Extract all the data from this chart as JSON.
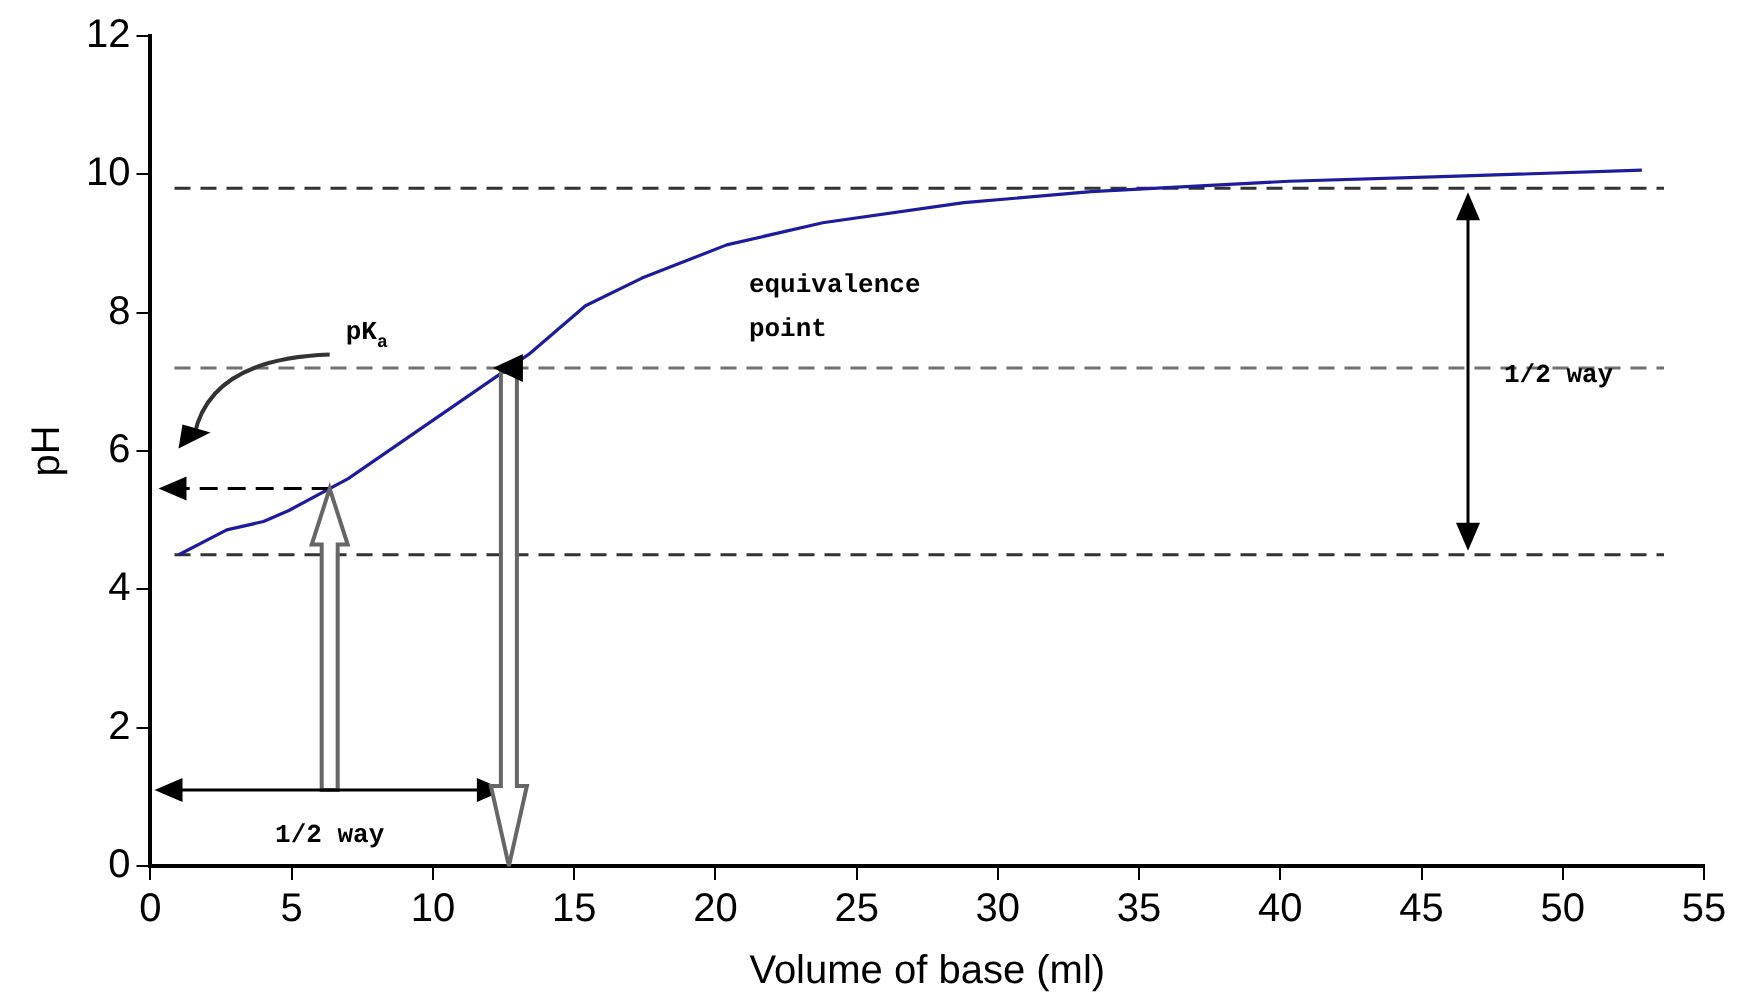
{
  "chart_data": {
    "type": "line",
    "xlabel": "Volume of base (ml)",
    "ylabel": "pH",
    "x": [
      1,
      2.7,
      4,
      4.9,
      7,
      10.2,
      13.4,
      15.4,
      17.4,
      20.4,
      23.8,
      28.8,
      33.3,
      40.3,
      46,
      52.8
    ],
    "series": [
      {
        "color": "#1c1c9c",
        "values": [
          4.5,
          4.86,
          4.98,
          5.14,
          5.6,
          6.5,
          7.4,
          8.1,
          8.5,
          8.98,
          9.3,
          9.59,
          9.75,
          9.9,
          9.97,
          10.06
        ]
      }
    ],
    "xlim": [
      0,
      55
    ],
    "xticks": [
      0,
      5,
      10,
      15,
      20,
      25,
      30,
      35,
      40,
      45,
      50,
      55
    ],
    "ylim": [
      0,
      12
    ],
    "yticks": [
      0,
      2,
      4,
      6,
      8,
      10,
      12
    ],
    "ref_lines": [
      {
        "axis": "y",
        "value": 4.5,
        "color": "#333333",
        "line_style": "dashed"
      },
      {
        "axis": "y",
        "value": 7.2,
        "color": "#707070",
        "line_style": "dashed"
      },
      {
        "axis": "y",
        "value": 9.8,
        "color": "#333333",
        "line_style": "dashed"
      }
    ],
    "annotations": [
      "pK$_{a}$",
      "equivalence point",
      "1/2 way",
      "1/2 way"
    ],
    "grid": false,
    "legend": false,
    "marker": "none",
    "line_style": "solid"
  }
}
